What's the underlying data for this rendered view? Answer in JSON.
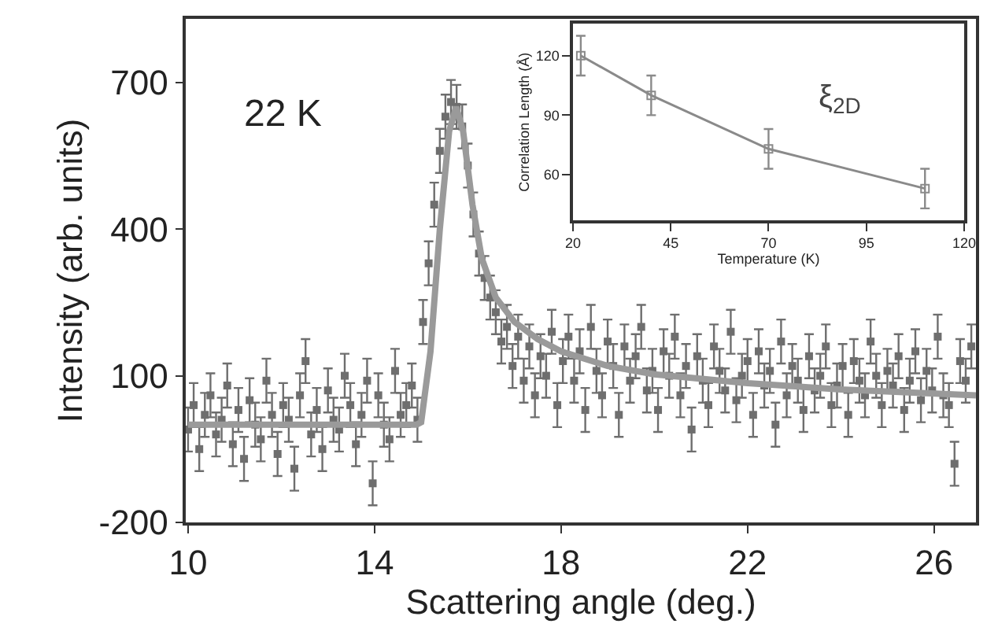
{
  "chart_data": [
    {
      "type": "scatter",
      "xlabel": "Scattering angle (deg.)",
      "ylabel": "Intensity (arb. units)",
      "annotations": [
        "22 K"
      ],
      "xlim": [
        9.95,
        26.9
      ],
      "ylim": [
        -200,
        830
      ],
      "xticks": [
        10,
        14,
        18,
        22,
        26
      ],
      "yticks": [
        -200,
        100,
        400,
        700
      ],
      "marker": "square",
      "series": [
        {
          "color": "#6e6e6e",
          "x": [
            10.0,
            10.12,
            10.24,
            10.36,
            10.48,
            10.6,
            10.72,
            10.84,
            10.96,
            11.08,
            11.2,
            11.32,
            11.44,
            11.56,
            11.68,
            11.8,
            11.92,
            12.04,
            12.16,
            12.28,
            12.4,
            12.52,
            12.64,
            12.76,
            12.88,
            13.0,
            13.12,
            13.24,
            13.36,
            13.48,
            13.6,
            13.72,
            13.84,
            13.96,
            14.08,
            14.2,
            14.32,
            14.44,
            14.56,
            14.68,
            14.8,
            14.92,
            15.04,
            15.16,
            15.28,
            15.4,
            15.52,
            15.64,
            15.76,
            15.88,
            16.0,
            16.12,
            16.24,
            16.36,
            16.48,
            16.6,
            16.72,
            16.84,
            16.96,
            17.08,
            17.2,
            17.32,
            17.44,
            17.56,
            17.68,
            17.8,
            17.92,
            18.04,
            18.16,
            18.28,
            18.4,
            18.52,
            18.64,
            18.76,
            18.88,
            19.0,
            19.12,
            19.24,
            19.36,
            19.48,
            19.6,
            19.72,
            19.84,
            19.96,
            20.08,
            20.2,
            20.32,
            20.44,
            20.56,
            20.68,
            20.8,
            20.92,
            21.04,
            21.16,
            21.28,
            21.4,
            21.52,
            21.64,
            21.76,
            21.88,
            22.0,
            22.12,
            22.24,
            22.36,
            22.48,
            22.6,
            22.72,
            22.84,
            22.96,
            23.08,
            23.2,
            23.32,
            23.44,
            23.56,
            23.68,
            23.8,
            23.92,
            24.04,
            24.16,
            24.28,
            24.4,
            24.52,
            24.64,
            24.76,
            24.88,
            25.0,
            25.12,
            25.24,
            25.36,
            25.48,
            25.6,
            25.72,
            25.84,
            25.96,
            26.08,
            26.2,
            26.32,
            26.44,
            26.56,
            26.68,
            26.8
          ],
          "values": [
            -10,
            40,
            -50,
            20,
            60,
            -20,
            10,
            80,
            -40,
            30,
            -70,
            50,
            0,
            -30,
            90,
            20,
            -60,
            40,
            10,
            -90,
            60,
            130,
            -20,
            30,
            -50,
            70,
            10,
            -10,
            100,
            40,
            -40,
            20,
            90,
            -120,
            60,
            0,
            -30,
            110,
            20,
            40,
            80,
            10,
            210,
            330,
            450,
            560,
            630,
            660,
            650,
            610,
            530,
            430,
            350,
            300,
            260,
            230,
            170,
            200,
            120,
            180,
            90,
            160,
            60,
            140,
            100,
            190,
            40,
            130,
            180,
            90,
            150,
            30,
            200,
            110,
            60,
            170,
            120,
            20,
            160,
            90,
            140,
            200,
            70,
            110,
            30,
            150,
            100,
            180,
            60,
            120,
            -10,
            140,
            90,
            40,
            160,
            110,
            70,
            190,
            50,
            100,
            130,
            20,
            150,
            80,
            110,
            0,
            170,
            60,
            120,
            90,
            30,
            140,
            70,
            100,
            160,
            40,
            80,
            120,
            20,
            130,
            90,
            60,
            170,
            100,
            40,
            110,
            80,
            140,
            30,
            90,
            150,
            50,
            110,
            70,
            180,
            60,
            40,
            -80,
            130,
            90,
            160
          ],
          "errors": [
            45,
            45,
            45,
            45,
            45,
            45,
            45,
            45,
            45,
            45,
            45,
            45,
            45,
            45,
            45,
            45,
            45,
            45,
            45,
            45,
            45,
            45,
            45,
            45,
            45,
            45,
            45,
            45,
            45,
            45,
            45,
            45,
            45,
            45,
            45,
            45,
            45,
            45,
            45,
            45,
            45,
            45,
            45,
            45,
            45,
            45,
            45,
            45,
            45,
            45,
            45,
            45,
            45,
            45,
            45,
            45,
            45,
            45,
            45,
            45,
            45,
            45,
            45,
            45,
            45,
            45,
            45,
            45,
            45,
            45,
            45,
            45,
            45,
            45,
            45,
            45,
            45,
            45,
            45,
            45,
            45,
            45,
            45,
            45,
            45,
            45,
            45,
            45,
            45,
            45,
            45,
            45,
            45,
            45,
            45,
            45,
            45,
            45,
            45,
            45,
            45,
            45,
            45,
            45,
            45,
            45,
            45,
            45,
            45,
            45,
            45,
            45,
            45,
            45,
            45,
            45,
            45,
            45,
            45,
            45,
            45,
            45,
            45,
            45,
            45,
            45,
            45,
            45,
            45,
            45,
            45,
            45,
            45,
            45,
            45,
            45,
            45,
            45,
            45,
            45,
            45
          ]
        },
        {
          "type": "line",
          "color": "#9a9a9a",
          "marker": "none",
          "x": [
            10,
            14.9,
            15.0,
            15.2,
            15.4,
            15.6,
            15.75,
            15.9,
            16.1,
            16.3,
            16.6,
            17,
            17.5,
            18,
            19,
            20,
            22,
            24,
            26.9
          ],
          "values": [
            0,
            0,
            5,
            150,
            400,
            600,
            650,
            600,
            450,
            340,
            260,
            210,
            175,
            150,
            120,
            103,
            85,
            72,
            60
          ]
        }
      ]
    },
    {
      "type": "line",
      "xlabel": "Temperature (K)",
      "ylabel": "Correlation Length (Å)",
      "annotations": [
        "ξ$_{2D}$"
      ],
      "xlim": [
        20,
        120
      ],
      "ylim": [
        37,
        136
      ],
      "xticks": [
        20,
        45,
        70,
        95,
        120
      ],
      "yticks": [
        60,
        90,
        120
      ],
      "marker": "square",
      "series": [
        {
          "color": "#8a8a8a",
          "x": [
            22,
            40,
            70,
            110
          ],
          "values": [
            120,
            100,
            73,
            53
          ],
          "errors": [
            10,
            10,
            10,
            10
          ]
        }
      ]
    }
  ]
}
